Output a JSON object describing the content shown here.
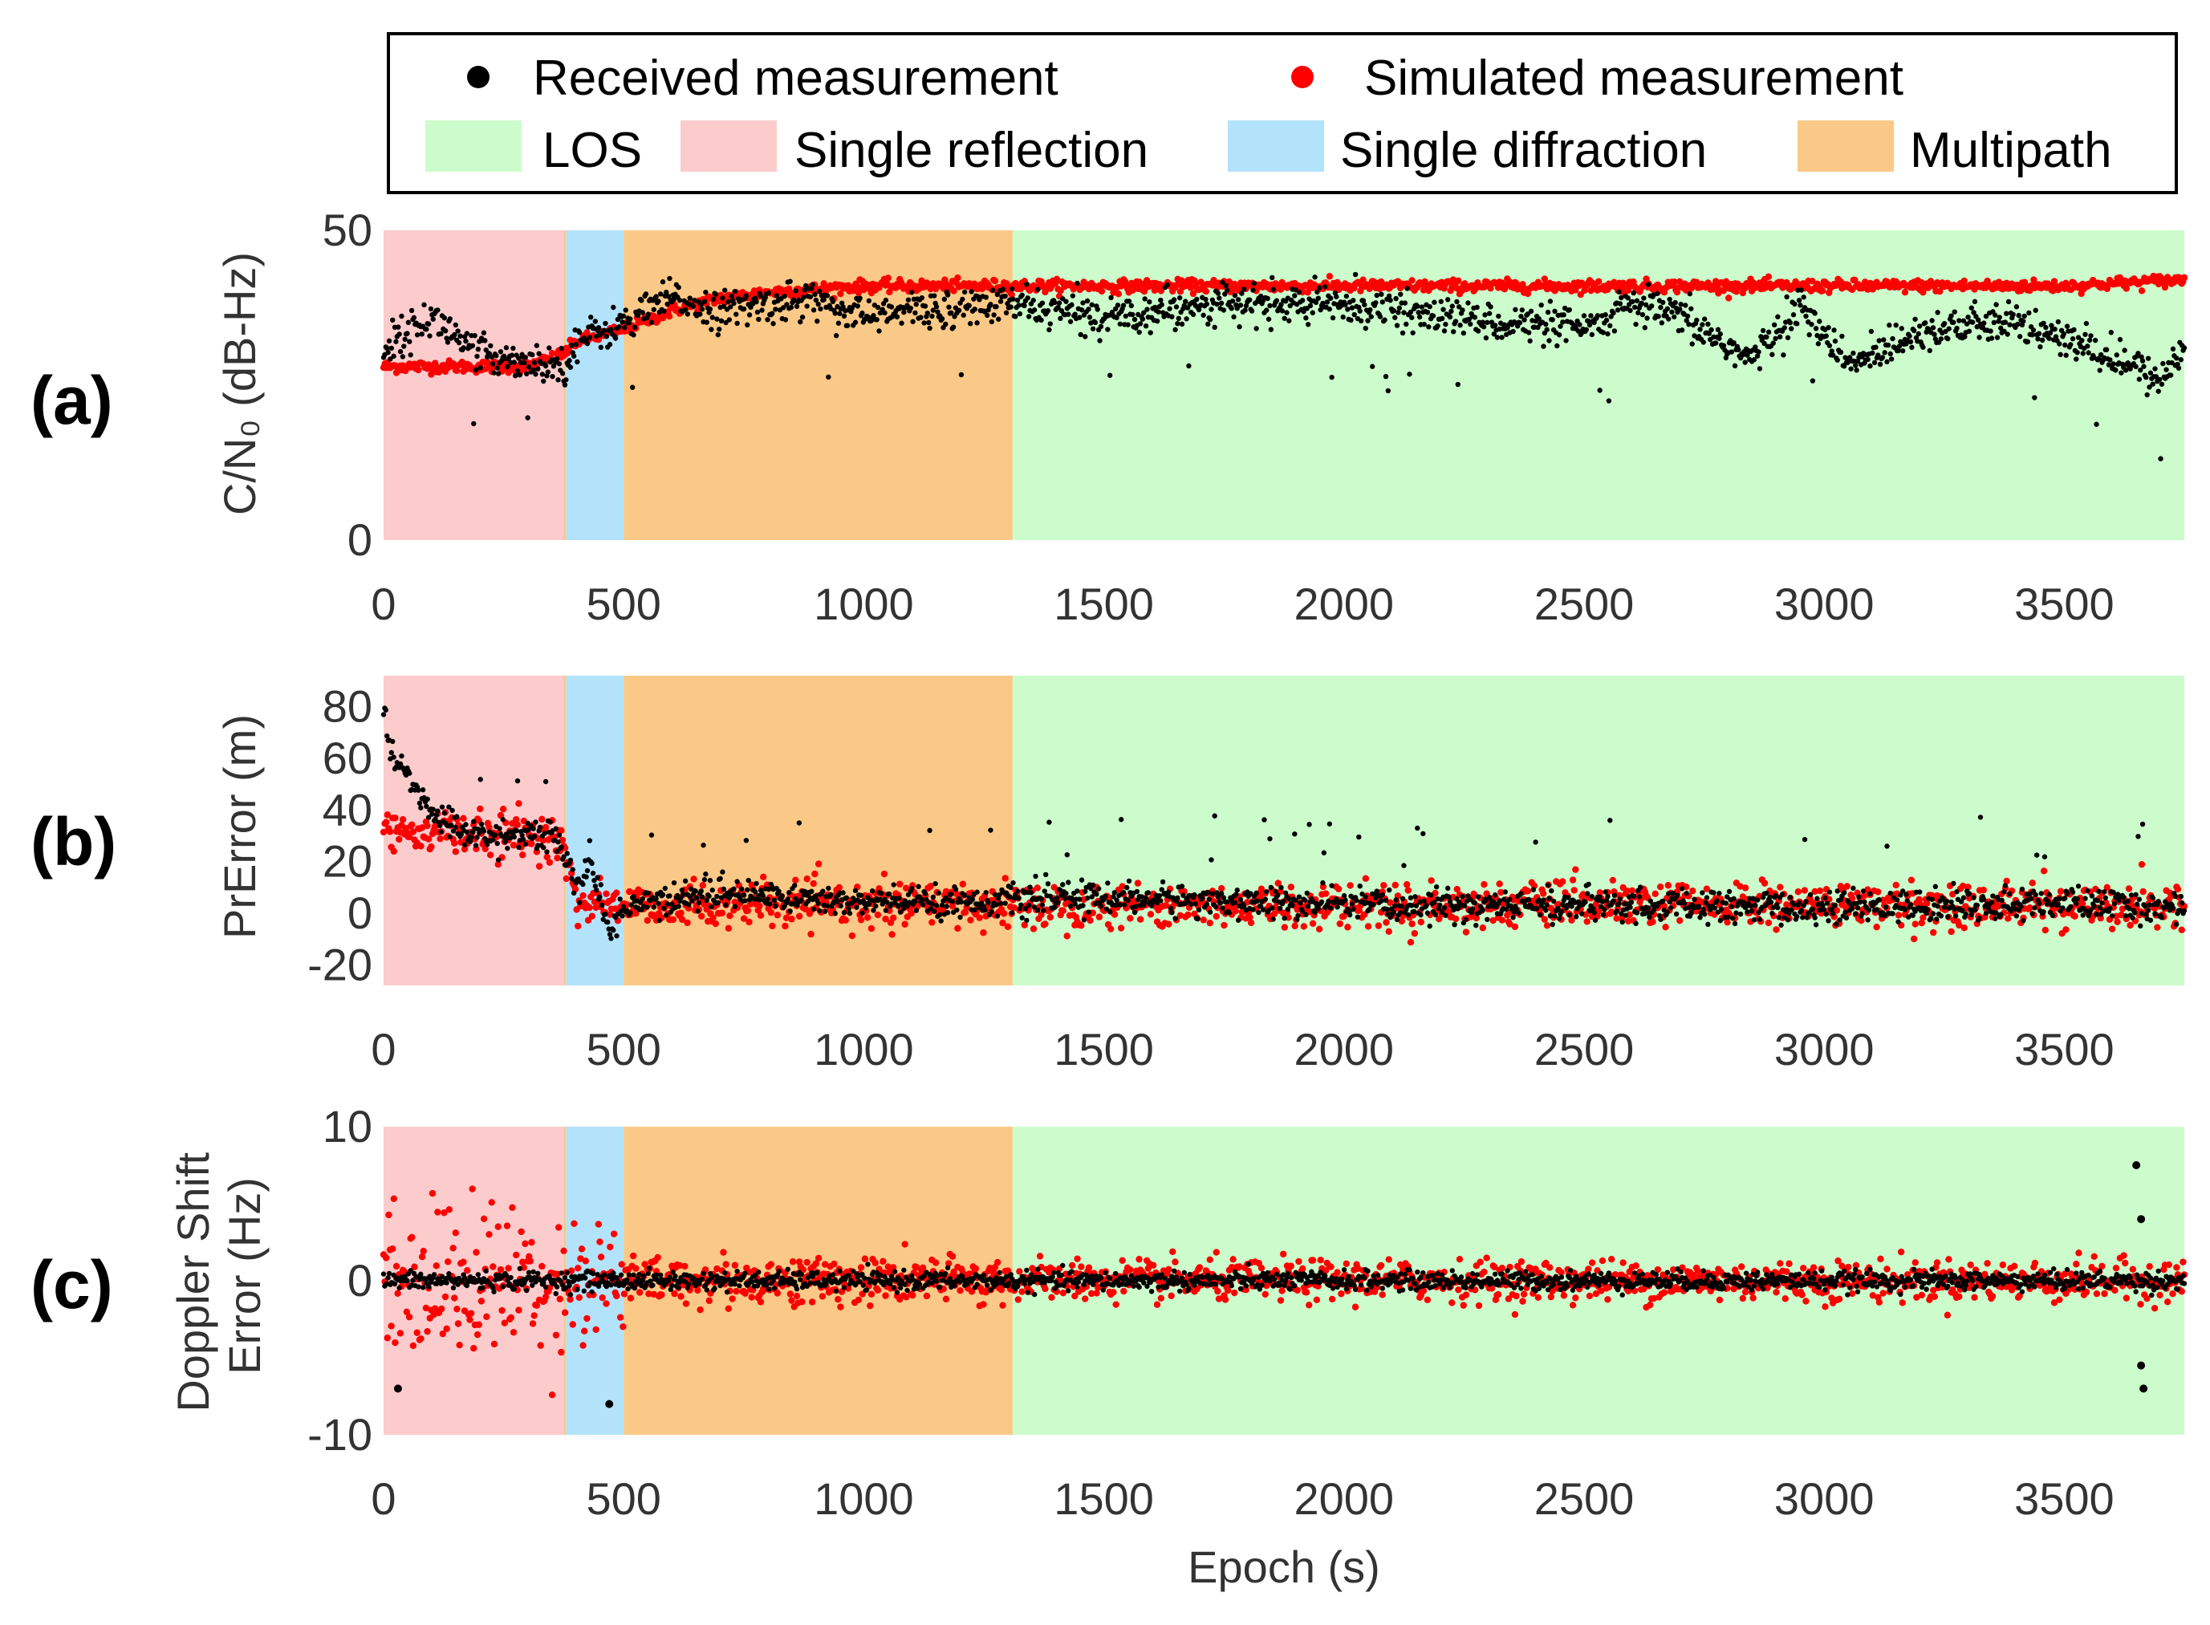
{
  "legend": {
    "items": [
      {
        "label": "Received measurement",
        "kind": "marker",
        "color": "#000000"
      },
      {
        "label": "Simulated measurement",
        "kind": "marker",
        "color": "#ff0000"
      },
      {
        "label": "LOS",
        "kind": "patch",
        "color": "#ccfccc"
      },
      {
        "label": "Single reflection",
        "kind": "patch",
        "color": "#fccccc"
      },
      {
        "label": "Single diffraction",
        "kind": "patch",
        "color": "#b3e3fb"
      },
      {
        "label": "Multipath",
        "kind": "patch",
        "color": "#fbc987"
      }
    ]
  },
  "xlabel": "Epoch (s)",
  "chart_data": [
    {
      "type": "scatter",
      "panel_label": "(a)",
      "ylabel": "C/N₀ (dB-Hz)",
      "xlim": [
        0,
        3750
      ],
      "ylim": [
        0,
        50
      ],
      "xticks": [
        "0",
        "500",
        "1000",
        "1500",
        "2000",
        "2500",
        "3000",
        "3500"
      ],
      "yticks": [
        "0",
        "50"
      ],
      "regions": [
        {
          "name": "Single reflection",
          "from": 0,
          "to": 375
        },
        {
          "name": "Multipath",
          "from": 375,
          "to": 380
        },
        {
          "name": "Single diffraction",
          "from": 380,
          "to": 500
        },
        {
          "name": "Multipath",
          "from": 500,
          "to": 1310
        },
        {
          "name": "LOS",
          "from": 1310,
          "to": 3750
        }
      ],
      "series": [
        {
          "name": "Simulated measurement",
          "color": "#ff0000",
          "x": [
            0,
            100,
            200,
            300,
            375,
            400,
            500,
            600,
            700,
            800,
            900,
            1000,
            1310,
            1500,
            2000,
            2500,
            3000,
            3500,
            3750
          ],
          "y": [
            28,
            28,
            28,
            28,
            30,
            32,
            34,
            37,
            39,
            40,
            40.5,
            41,
            41,
            41,
            41,
            41,
            41,
            41,
            42
          ],
          "spread": 0.8
        },
        {
          "name": "Received measurement",
          "color": "#000000",
          "x": [
            0,
            100,
            200,
            300,
            375,
            400,
            500,
            600,
            700,
            800,
            900,
            1000,
            1100,
            1310,
            1500,
            1700,
            2000,
            2200,
            2500,
            2600,
            2700,
            2850,
            2950,
            3050,
            3200,
            3400,
            3550,
            3700,
            3750
          ],
          "y": [
            31,
            36,
            30,
            29,
            28,
            32,
            35,
            39,
            37,
            38,
            39,
            36,
            37,
            38,
            36,
            38,
            38,
            36,
            34,
            38,
            36,
            29,
            38,
            28,
            34,
            35,
            31,
            26,
            31
          ],
          "spread": 2.5
        }
      ]
    },
    {
      "type": "scatter",
      "panel_label": "(b)",
      "ylabel": "PrError (m)",
      "xlim": [
        0,
        3750
      ],
      "ylim": [
        -28,
        92
      ],
      "xticks": [
        "0",
        "500",
        "1000",
        "1500",
        "2000",
        "2500",
        "3000",
        "3500"
      ],
      "yticks": [
        "-20",
        "0",
        "20",
        "40",
        "60",
        "80"
      ],
      "regions": [
        {
          "name": "Single reflection",
          "from": 0,
          "to": 375
        },
        {
          "name": "Multipath",
          "from": 375,
          "to": 380
        },
        {
          "name": "Single diffraction",
          "from": 380,
          "to": 500
        },
        {
          "name": "Multipath",
          "from": 500,
          "to": 1310
        },
        {
          "name": "LOS",
          "from": 1310,
          "to": 3750
        }
      ],
      "series": [
        {
          "name": "Simulated measurement",
          "color": "#ff0000",
          "x": [
            0,
            100,
            200,
            300,
            370,
            400,
            500,
            1000,
            1500,
            2000,
            2500,
            3000,
            3500,
            3750
          ],
          "y": [
            32,
            32,
            30,
            30,
            28,
            5,
            3,
            3,
            3,
            3,
            3,
            3,
            3,
            3
          ],
          "spread": 7
        },
        {
          "name": "Received measurement",
          "color": "#000000",
          "x": [
            0,
            20,
            60,
            100,
            200,
            300,
            370,
            400,
            430,
            470,
            500,
            700,
            1000,
            1310,
            1500,
            1700,
            2000,
            2500,
            3000,
            3500,
            3750
          ],
          "y": [
            80,
            60,
            50,
            38,
            30,
            30,
            28,
            10,
            20,
            -8,
            3,
            8,
            4,
            5,
            6,
            5,
            3,
            3,
            2,
            4,
            2
          ],
          "spread": 5
        }
      ]
    },
    {
      "type": "scatter",
      "panel_label": "(c)",
      "ylabel": "Doppler Shift Error (Hz)",
      "ylabel_lines": [
        "Doppler Shift",
        "Error (Hz)"
      ],
      "xlim": [
        0,
        3750
      ],
      "ylim": [
        -10,
        10
      ],
      "xticks": [
        "0",
        "500",
        "1000",
        "1500",
        "2000",
        "2500",
        "3000",
        "3500"
      ],
      "yticks": [
        "-10",
        "0",
        "10"
      ],
      "regions": [
        {
          "name": "Single reflection",
          "from": 0,
          "to": 375
        },
        {
          "name": "Multipath",
          "from": 375,
          "to": 380
        },
        {
          "name": "Single diffraction",
          "from": 380,
          "to": 500
        },
        {
          "name": "Multipath",
          "from": 500,
          "to": 1310
        },
        {
          "name": "LOS",
          "from": 1310,
          "to": 3750
        }
      ],
      "series": [
        {
          "name": "Simulated measurement",
          "color": "#ff0000",
          "x": [
            0,
            375,
            500,
            1310,
            3750
          ],
          "y": [
            0,
            0,
            0,
            0,
            0
          ],
          "spread_by_region": [
            [
              0,
              375,
              4.2
            ],
            [
              375,
              500,
              3.2
            ],
            [
              500,
              1310,
              1.3
            ],
            [
              1310,
              3750,
              1.1
            ]
          ]
        },
        {
          "name": "Received measurement",
          "color": "#000000",
          "x": [
            0,
            3750
          ],
          "y": [
            0,
            0
          ],
          "spread": 0.5,
          "outliers": [
            [
              30,
              -7
            ],
            [
              470,
              -8
            ],
            [
              3650,
              7.5
            ],
            [
              3660,
              4
            ],
            [
              3660,
              -5.5
            ],
            [
              3665,
              -7
            ]
          ]
        }
      ]
    }
  ]
}
